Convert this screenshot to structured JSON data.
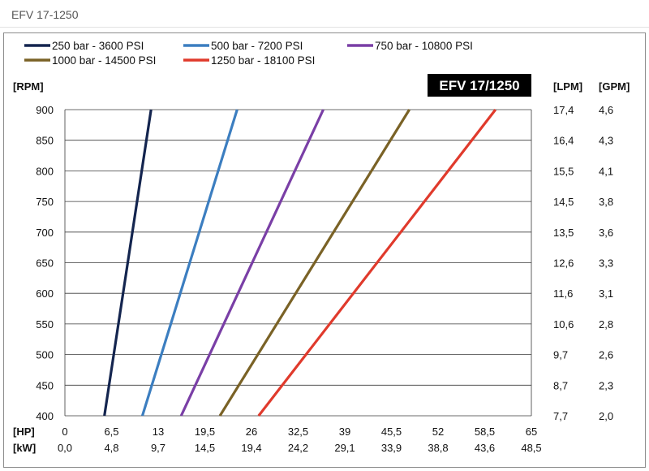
{
  "page": {
    "title": "EFV 17-1250"
  },
  "chart_data": {
    "type": "line",
    "title": "EFV 17/1250",
    "ylabel_left": "[RPM]",
    "ylabel_right_1": "[LPM]",
    "ylabel_right_2": "[GPM]",
    "xlabel_1": "[HP]",
    "xlabel_2": "[kW]",
    "ylim": [
      400,
      900
    ],
    "xlim": [
      0,
      65
    ],
    "grid": true,
    "legend_placement": "top",
    "y_ticks": [
      "400",
      "450",
      "500",
      "550",
      "600",
      "650",
      "700",
      "750",
      "800",
      "850",
      "900"
    ],
    "y_values": [
      400,
      450,
      500,
      550,
      600,
      650,
      700,
      750,
      800,
      850,
      900
    ],
    "lpm_ticks": [
      "7,7",
      "8,7",
      "9,7",
      "10,6",
      "11,6",
      "12,6",
      "13,5",
      "14,5",
      "15,5",
      "16,4",
      "17,4"
    ],
    "gpm_ticks": [
      "2,0",
      "2,3",
      "2,6",
      "2,8",
      "3,1",
      "3,3",
      "3,6",
      "3,8",
      "4,1",
      "4,3",
      "4,6"
    ],
    "hp_ticks": [
      "0",
      "6,5",
      "13",
      "19,5",
      "26",
      "32,5",
      "39",
      "45,5",
      "52",
      "58,5",
      "65"
    ],
    "hp_values": [
      0,
      6.5,
      13,
      19.5,
      26,
      32.5,
      39,
      45.5,
      52,
      58.5,
      65
    ],
    "kw_ticks": [
      "0,0",
      "4,8",
      "9,7",
      "14,5",
      "19,4",
      "24,2",
      "29,1",
      "33,9",
      "38,8",
      "43,6",
      "48,5"
    ],
    "series": [
      {
        "name": "250 bar - 3600 PSI",
        "color": "#14254f",
        "x": [
          5.5,
          12.0
        ],
        "y": [
          400,
          900
        ]
      },
      {
        "name": "500 bar - 7200 PSI",
        "color": "#3c7ec0",
        "x": [
          10.8,
          24.0
        ],
        "y": [
          400,
          900
        ]
      },
      {
        "name": "750 bar - 10800 PSI",
        "color": "#7a3fa6",
        "x": [
          16.2,
          36.0
        ],
        "y": [
          400,
          900
        ]
      },
      {
        "name": "1000 bar - 14500 PSI",
        "color": "#7a6226",
        "x": [
          21.6,
          48.0
        ],
        "y": [
          400,
          900
        ]
      },
      {
        "name": "1250 bar - 18100 PSI",
        "color": "#e03a2c",
        "x": [
          27.0,
          60.0
        ],
        "y": [
          400,
          900
        ]
      }
    ]
  }
}
